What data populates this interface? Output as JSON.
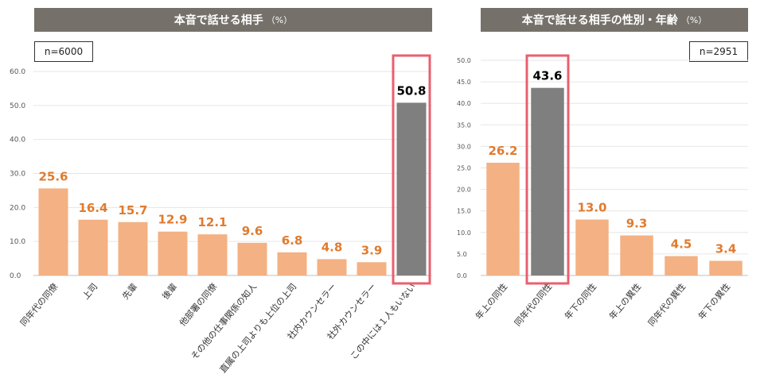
{
  "colors": {
    "bar": "#f4b183",
    "bar_highlight": "#7f7f7f",
    "value_label": "#e07b2f",
    "value_label_highlight": "#000000",
    "highlight_frame": "#e8606f",
    "title_bg": "#75716a"
  },
  "chart_data": [
    {
      "type": "bar",
      "title": "本音で話せる相手",
      "unit": "（%）",
      "sample": "n=6000",
      "categories": [
        "同年代の同僚",
        "上司",
        "先輩",
        "後輩",
        "他部署の同僚",
        "その他の仕事関係の知人",
        "直属の上司よりも上位の上司",
        "社内カウンセラー",
        "社外カウンセラー",
        "この中には１人もいない"
      ],
      "values": [
        25.6,
        16.4,
        15.7,
        12.9,
        12.1,
        9.6,
        6.8,
        4.8,
        3.9,
        50.8
      ],
      "value_labels": [
        "25.6",
        "16.4",
        "15.7",
        "12.9",
        "12.1",
        "9.6",
        "6.8",
        "4.8",
        "3.9",
        "50.8"
      ],
      "highlight_index": 9,
      "ylim": [
        0,
        60
      ],
      "yticks": [
        "0.0",
        "10.0",
        "20.0",
        "30.0",
        "40.0",
        "50.0",
        "60.0"
      ],
      "grid": true
    },
    {
      "type": "bar",
      "title": "本音で話せる相手の性別・年齢",
      "unit": "（%）",
      "sample": "n=2951",
      "categories": [
        "年上の同性",
        "同年代の同性",
        "年下の同性",
        "年上の異性",
        "同年代の異性",
        "年下の異性"
      ],
      "values": [
        26.2,
        43.6,
        13.0,
        9.3,
        4.5,
        3.4
      ],
      "value_labels": [
        "26.2",
        "43.6",
        "13.0",
        "9.3",
        "4.5",
        "3.4"
      ],
      "highlight_index": 1,
      "ylim": [
        0,
        50
      ],
      "yticks": [
        "0.0",
        "5.0",
        "10.0",
        "15.0",
        "20.0",
        "25.0",
        "30.0",
        "35.0",
        "40.0",
        "45.0",
        "50.0"
      ],
      "grid": true
    }
  ]
}
